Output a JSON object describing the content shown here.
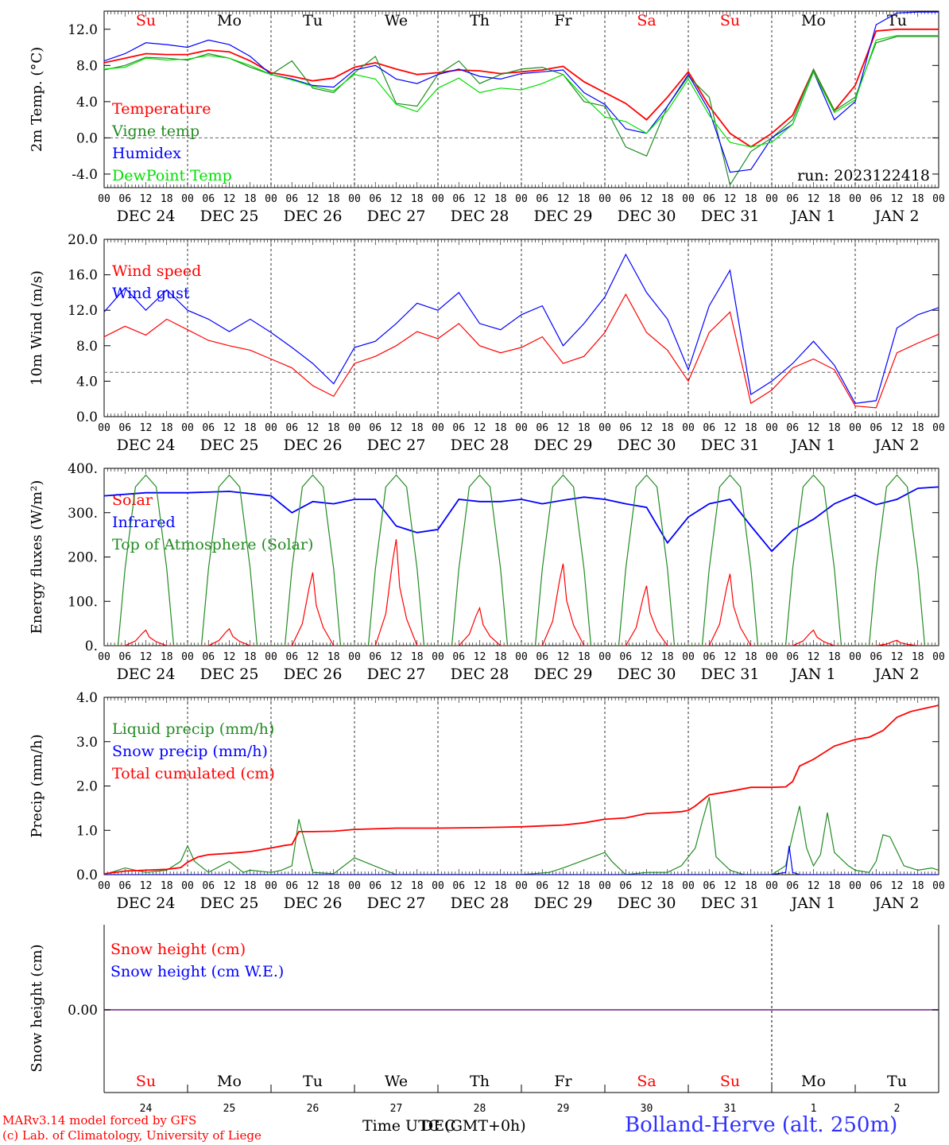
{
  "footer": {
    "credit_line1": "MARv3.14 model forced by GFS",
    "credit_line2": "(c) Lab. of Climatology, University of Liege",
    "time_label": "Time UTC (GMT+0h)",
    "time_label_overlap": "DEC",
    "station": "Bolland-Herve (alt. 250m)"
  },
  "axis": {
    "hours": [
      "00",
      "06",
      "12",
      "18"
    ],
    "dates": [
      "DEC 24",
      "DEC 25",
      "DEC 26",
      "DEC 27",
      "DEC 28",
      "DEC 29",
      "DEC 30",
      "DEC 31",
      "JAN  1",
      "JAN  2"
    ],
    "days": [
      "Su",
      "Mo",
      "Tu",
      "We",
      "Th",
      "Fr",
      "Sa",
      "Su",
      "Mo",
      "Tu"
    ],
    "day_colors": [
      "#ff0000",
      "#000000",
      "#000000",
      "#000000",
      "#000000",
      "#000000",
      "#ff0000",
      "#ff0000",
      "#000000",
      "#000000"
    ],
    "day_numbers": [
      "24",
      "25",
      "26",
      "27",
      "28",
      "29",
      "30",
      "31",
      "1",
      "2"
    ]
  },
  "chart_data": [
    {
      "type": "line",
      "ylabel": "2m Temp. (°C)",
      "ylim": [
        -5.5,
        14
      ],
      "yticks": [
        "12.0",
        "8.0",
        "4.0",
        "0.0",
        "-4.0"
      ],
      "reference_line": 0,
      "annotation": "run: 2023122418",
      "x_unit": "hours since DEC 24 00 UTC",
      "series": [
        {
          "name": "Temperature",
          "color": "#ff0000",
          "x": [
            0,
            6,
            12,
            18,
            24,
            30,
            36,
            42,
            48,
            54,
            60,
            66,
            72,
            78,
            84,
            90,
            96,
            102,
            108,
            114,
            120,
            126,
            132,
            138,
            144,
            150,
            156,
            162,
            168,
            174,
            180,
            186,
            192,
            198,
            204,
            210,
            216,
            222,
            228,
            234,
            240
          ],
          "y": [
            8.3,
            8.8,
            9.3,
            9.2,
            9.2,
            9.7,
            9.5,
            8.5,
            7.2,
            6.8,
            6.3,
            6.6,
            7.8,
            8.3,
            7.6,
            7.0,
            7.2,
            7.5,
            7.4,
            7.1,
            7.3,
            7.5,
            7.9,
            6.2,
            5.0,
            3.8,
            2.0,
            4.5,
            7.3,
            3.5,
            0.5,
            -1.0,
            0.5,
            2.5,
            7.5,
            3.0,
            5.8,
            11.8,
            12.0,
            12.0,
            12.0
          ]
        },
        {
          "name": "Vigne temp",
          "color": "#228b22",
          "x": [
            0,
            6,
            12,
            18,
            24,
            30,
            36,
            42,
            48,
            54,
            60,
            66,
            72,
            78,
            84,
            90,
            96,
            102,
            108,
            114,
            120,
            126,
            132,
            138,
            144,
            150,
            156,
            162,
            168,
            174,
            180,
            186,
            192,
            198,
            204,
            210,
            216,
            222,
            228,
            234,
            240
          ],
          "y": [
            7.5,
            8.0,
            8.9,
            8.8,
            8.6,
            9.3,
            8.8,
            7.8,
            7.0,
            8.5,
            5.5,
            5.0,
            7.2,
            9.0,
            3.8,
            3.5,
            7.0,
            8.5,
            6.0,
            7.0,
            7.6,
            7.8,
            7.0,
            4.0,
            3.5,
            -1.0,
            -2.0,
            3.5,
            6.8,
            4.5,
            -5.2,
            -1.5,
            0.0,
            2.0,
            7.6,
            3.0,
            4.5,
            10.5,
            11.2,
            11.2,
            11.2
          ]
        },
        {
          "name": "Humidex",
          "color": "#0000ff",
          "x": [
            0,
            6,
            12,
            18,
            24,
            30,
            36,
            42,
            48,
            54,
            60,
            66,
            72,
            78,
            84,
            90,
            96,
            102,
            108,
            114,
            120,
            126,
            132,
            138,
            144,
            150,
            156,
            162,
            168,
            174,
            180,
            186,
            192,
            198,
            204,
            210,
            216,
            222,
            228,
            234,
            240
          ],
          "y": [
            8.5,
            9.3,
            10.5,
            10.3,
            10.0,
            10.8,
            10.3,
            9.0,
            7.0,
            6.5,
            5.8,
            5.6,
            7.5,
            8.0,
            6.5,
            6.0,
            7.0,
            7.6,
            6.8,
            6.5,
            7.1,
            7.3,
            7.5,
            5.0,
            3.7,
            1.0,
            0.5,
            3.5,
            7.0,
            3.0,
            -3.8,
            -3.5,
            0.0,
            1.5,
            7.3,
            2.0,
            4.0,
            12.5,
            13.8,
            13.9,
            13.9
          ]
        },
        {
          "name": "DewPoint Temp",
          "color": "#00e000",
          "x": [
            0,
            6,
            12,
            18,
            24,
            30,
            36,
            42,
            48,
            54,
            60,
            66,
            72,
            78,
            84,
            90,
            96,
            102,
            108,
            114,
            120,
            126,
            132,
            138,
            144,
            150,
            156,
            162,
            168,
            174,
            180,
            186,
            192,
            198,
            204,
            210,
            216,
            222,
            228,
            234,
            240
          ],
          "y": [
            7.6,
            7.8,
            8.8,
            8.6,
            8.7,
            9.1,
            8.8,
            8.0,
            7.0,
            6.4,
            5.7,
            5.2,
            7.0,
            6.5,
            3.7,
            2.9,
            5.5,
            6.6,
            5.0,
            5.5,
            5.3,
            6.0,
            7.0,
            4.5,
            2.3,
            1.8,
            0.5,
            3.0,
            6.5,
            2.5,
            -0.5,
            -1.0,
            -0.5,
            1.5,
            7.3,
            2.8,
            4.2,
            10.8,
            11.3,
            11.3,
            11.3
          ]
        }
      ]
    },
    {
      "type": "line",
      "ylabel": "10m Wind (m/s)",
      "ylim": [
        0,
        20
      ],
      "yticks": [
        "20.0",
        "16.0",
        "12.0",
        "8.0",
        "4.0",
        "0.0"
      ],
      "reference_line": 5,
      "x_unit": "hours since DEC 24 00 UTC",
      "series": [
        {
          "name": "Wind speed",
          "color": "#ff0000",
          "x": [
            0,
            6,
            12,
            18,
            24,
            30,
            36,
            42,
            48,
            54,
            60,
            66,
            72,
            78,
            84,
            90,
            96,
            102,
            108,
            114,
            120,
            126,
            132,
            138,
            144,
            150,
            156,
            162,
            168,
            174,
            180,
            186,
            192,
            198,
            204,
            210,
            216,
            222,
            228,
            234,
            240
          ],
          "y": [
            9.0,
            10.2,
            9.2,
            11.0,
            9.8,
            8.6,
            8.0,
            7.5,
            6.5,
            5.5,
            3.5,
            2.3,
            6.0,
            6.8,
            8.0,
            9.6,
            8.8,
            10.5,
            8.0,
            7.2,
            7.8,
            9.0,
            6.0,
            6.8,
            9.5,
            13.8,
            9.5,
            7.5,
            4.0,
            9.5,
            11.8,
            1.5,
            3.0,
            5.5,
            6.5,
            5.3,
            1.2,
            1.0,
            7.2,
            8.3,
            9.3
          ]
        },
        {
          "name": "Wind gust",
          "color": "#0000ff",
          "x": [
            0,
            6,
            12,
            18,
            24,
            30,
            36,
            42,
            48,
            54,
            60,
            66,
            72,
            78,
            84,
            90,
            96,
            102,
            108,
            114,
            120,
            126,
            132,
            138,
            144,
            150,
            156,
            162,
            168,
            174,
            180,
            186,
            192,
            198,
            204,
            210,
            216,
            222,
            228,
            234,
            240
          ],
          "y": [
            11.8,
            14.5,
            12.0,
            14.3,
            12.0,
            11.0,
            9.6,
            11.0,
            9.5,
            7.8,
            6.0,
            3.7,
            7.8,
            8.5,
            10.5,
            12.8,
            12.0,
            14.0,
            10.5,
            9.8,
            11.5,
            12.5,
            8.0,
            10.5,
            13.5,
            18.3,
            14.0,
            11.0,
            5.3,
            12.5,
            16.5,
            2.5,
            4.0,
            6.0,
            8.5,
            5.8,
            1.5,
            1.8,
            10.0,
            11.5,
            12.3
          ]
        }
      ]
    },
    {
      "type": "line",
      "ylabel": "Energy fluxes (W/m²)",
      "ylim": [
        0,
        400
      ],
      "yticks": [
        "400.",
        "300.",
        "200.",
        "100.",
        "0."
      ],
      "x_unit": "hours since DEC 24 00 UTC",
      "series": [
        {
          "name": "Solar",
          "color": "#ff0000",
          "peaks": [
            35,
            38,
            165,
            240,
            85,
            185,
            135,
            162,
            35,
            12
          ]
        },
        {
          "name": "Infrared",
          "color": "#0000ff",
          "x": [
            0,
            12,
            24,
            36,
            48,
            54,
            60,
            66,
            72,
            78,
            84,
            90,
            96,
            102,
            108,
            114,
            120,
            126,
            132,
            138,
            144,
            150,
            156,
            162,
            168,
            174,
            180,
            186,
            192,
            198,
            204,
            210,
            216,
            222,
            228,
            234,
            240
          ],
          "y": [
            338,
            345,
            345,
            348,
            338,
            300,
            325,
            320,
            330,
            330,
            270,
            255,
            262,
            330,
            325,
            325,
            330,
            320,
            328,
            335,
            330,
            320,
            312,
            232,
            290,
            320,
            330,
            270,
            213,
            260,
            285,
            320,
            340,
            318,
            330,
            355,
            358
          ]
        },
        {
          "name": "Top of Atmosphere (Solar)",
          "color": "#228b22",
          "peak": 385
        }
      ]
    },
    {
      "type": "line",
      "ylabel": "Precip (mm/h)",
      "ylim": [
        0,
        4
      ],
      "yticks": [
        "4.0",
        "3.0",
        "2.0",
        "1.0",
        "0.0"
      ],
      "x_unit": "hours since DEC 24 00 UTC",
      "series": [
        {
          "name": "Liquid precip (mm/h)",
          "color": "#228b22",
          "x": [
            0,
            6,
            12,
            18,
            22,
            24,
            26,
            30,
            36,
            40,
            42,
            48,
            51,
            54,
            56,
            60,
            66,
            72,
            84,
            96,
            114,
            120,
            128,
            132,
            144,
            146,
            150,
            156,
            162,
            166,
            170,
            172,
            174,
            176,
            180,
            184,
            192,
            196,
            198,
            200,
            202,
            204,
            206,
            208,
            210,
            214,
            216,
            220,
            222,
            224,
            226,
            230,
            234,
            238,
            240
          ],
          "y": [
            0,
            0.15,
            0.05,
            0.1,
            0.3,
            0.65,
            0.3,
            0.05,
            0.3,
            0.05,
            0.1,
            0.05,
            0.1,
            0.2,
            1.25,
            0.05,
            0.02,
            0.38,
            0,
            0,
            0,
            0,
            0.05,
            0.15,
            0.5,
            0.3,
            0,
            0.05,
            0.05,
            0.2,
            0.6,
            1.2,
            1.75,
            0.4,
            0.1,
            0,
            0,
            0.2,
            0.9,
            1.55,
            0.6,
            0.2,
            0.45,
            1.4,
            0.5,
            0.2,
            0.1,
            0.05,
            0.3,
            0.9,
            0.85,
            0.2,
            0.1,
            0.15,
            0.1
          ]
        },
        {
          "name": "Snow precip (mm/h)",
          "color": "#0000ff",
          "x": [
            0,
            192,
            196,
            197,
            198,
            200,
            240
          ],
          "y": [
            0,
            0,
            0.05,
            0.65,
            0.05,
            0,
            0
          ]
        },
        {
          "name": "Total cumulated (cm)",
          "color": "#ff0000",
          "x": [
            0,
            6,
            12,
            18,
            22,
            24,
            27,
            30,
            36,
            42,
            48,
            52,
            54,
            56,
            60,
            66,
            72,
            84,
            96,
            108,
            120,
            126,
            132,
            138,
            144,
            150,
            156,
            162,
            166,
            168,
            170,
            174,
            180,
            186,
            192,
            196,
            198,
            200,
            204,
            210,
            214,
            216,
            220,
            224,
            228,
            232,
            236,
            240
          ],
          "y": [
            0.02,
            0.08,
            0.1,
            0.12,
            0.16,
            0.28,
            0.4,
            0.45,
            0.48,
            0.52,
            0.6,
            0.66,
            0.68,
            0.97,
            0.97,
            0.98,
            1.02,
            1.05,
            1.05,
            1.06,
            1.08,
            1.1,
            1.12,
            1.17,
            1.25,
            1.28,
            1.38,
            1.4,
            1.42,
            1.45,
            1.55,
            1.8,
            1.88,
            1.97,
            1.97,
            1.98,
            2.1,
            2.45,
            2.6,
            2.9,
            3.0,
            3.05,
            3.1,
            3.25,
            3.55,
            3.68,
            3.75,
            3.82
          ]
        }
      ]
    },
    {
      "type": "line",
      "ylabel": "Snow height (cm)",
      "yticks": [
        "0.00"
      ],
      "series": [
        {
          "name": "Snow height (cm)",
          "color": "#ff0000",
          "y": [
            0,
            0
          ]
        },
        {
          "name": "Snow height (cm W.E.)",
          "color": "#0000ff",
          "y": [
            0,
            0
          ]
        }
      ]
    }
  ]
}
